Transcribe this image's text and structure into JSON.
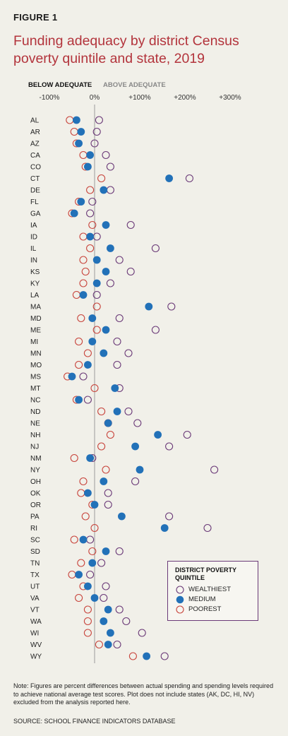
{
  "figure_label": "FIGURE 1",
  "title": "Funding adequacy by district Census poverty quintile and state, 2019",
  "direction_labels": {
    "below": "BELOW ADEQUATE",
    "above": "ABOVE ADEQUATE"
  },
  "legend": {
    "title": "DISTRICT POVERTY QUINTILE",
    "items": [
      {
        "label": "WEALTHIEST",
        "style": "open",
        "color": "#6b3a78"
      },
      {
        "label": "MEDIUM",
        "style": "filled",
        "color": "#2271b8"
      },
      {
        "label": "POOREST",
        "style": "open",
        "color": "#c8443c"
      }
    ]
  },
  "note": "Note: Figures are percent differences between actual spending and spending levels required to achieve national average test scores. Plot does not include states (AK, DC, HI, NV) excluded from the analysis reported here.",
  "source": "SOURCE: SCHOOL FINANCE INDICATORS DATABASE",
  "colors": {
    "wealthiest": "#6b3a78",
    "medium": "#2271b8",
    "poorest": "#c8443c",
    "title": "#b3343c"
  },
  "chart_data": {
    "type": "scatter",
    "orientation": "horizontal-dot-plot",
    "xlim": [
      -100,
      300
    ],
    "x_ticks": [
      -100,
      0,
      100,
      200,
      300
    ],
    "x_tick_labels": [
      "-100%",
      "0%",
      "+100%",
      "+200%",
      "+300%"
    ],
    "grid": "vertical-zero-line",
    "categories": [
      "AL",
      "AR",
      "AZ",
      "CA",
      "CO",
      "CT",
      "DE",
      "FL",
      "GA",
      "IA",
      "ID",
      "IL",
      "IN",
      "KS",
      "KY",
      "LA",
      "MA",
      "MD",
      "ME",
      "MI",
      "MN",
      "MO",
      "MS",
      "MT",
      "NC",
      "ND",
      "NE",
      "NH",
      "NJ",
      "NM",
      "NY",
      "OH",
      "OK",
      "OR",
      "PA",
      "RI",
      "SC",
      "SD",
      "TN",
      "TX",
      "UT",
      "VA",
      "VT",
      "WA",
      "WI",
      "WV",
      "WY"
    ],
    "series": [
      {
        "name": "WEALTHIEST",
        "values": [
          10,
          5,
          0,
          25,
          35,
          210,
          35,
          -5,
          -10,
          80,
          5,
          135,
          55,
          80,
          35,
          5,
          170,
          55,
          135,
          50,
          75,
          50,
          -25,
          55,
          -15,
          75,
          95,
          205,
          165,
          -5,
          265,
          90,
          30,
          30,
          165,
          250,
          -10,
          55,
          15,
          -10,
          25,
          20,
          55,
          70,
          105,
          50,
          155
        ]
      },
      {
        "name": "MEDIUM",
        "values": [
          -40,
          -30,
          -35,
          -10,
          -15,
          165,
          20,
          -30,
          -45,
          25,
          -10,
          35,
          5,
          25,
          5,
          -25,
          120,
          -5,
          25,
          -5,
          20,
          -15,
          -50,
          45,
          -35,
          50,
          30,
          140,
          90,
          -10,
          100,
          20,
          -15,
          0,
          60,
          155,
          -25,
          25,
          -5,
          -35,
          -15,
          0,
          30,
          20,
          35,
          30,
          115
        ]
      },
      {
        "name": "POOREST",
        "values": [
          -55,
          -45,
          -40,
          -25,
          -20,
          15,
          -10,
          -35,
          -50,
          -5,
          -25,
          -10,
          -25,
          -20,
          -25,
          -40,
          5,
          -30,
          5,
          -35,
          -15,
          -35,
          -60,
          0,
          -40,
          15,
          30,
          35,
          15,
          -45,
          25,
          -25,
          -30,
          -5,
          -20,
          0,
          -45,
          -5,
          -30,
          -50,
          -25,
          -35,
          -15,
          -15,
          -15,
          10,
          85
        ]
      }
    ]
  }
}
